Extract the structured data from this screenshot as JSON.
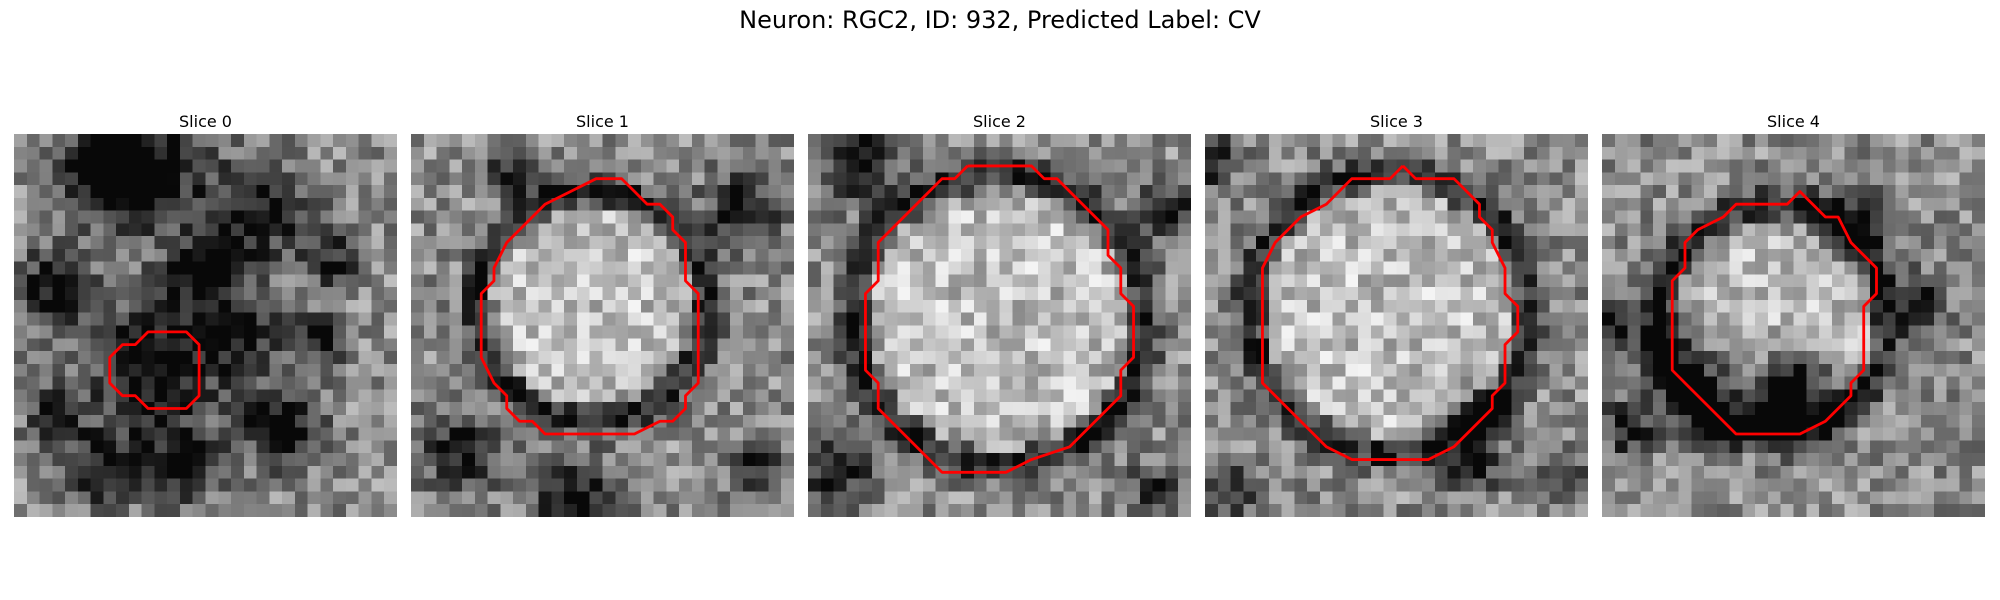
{
  "title": "Neuron: RGC2, ID: 932, Predicted Label: CV",
  "contour_color": "#ff0000",
  "slices": [
    {
      "label": "Slice 0",
      "contour": [
        [
          11.5,
          15.5
        ],
        [
          13.5,
          15.5
        ],
        [
          14.5,
          16.5
        ],
        [
          14.5,
          20.5
        ],
        [
          13.5,
          21.5
        ],
        [
          10.5,
          21.5
        ],
        [
          9.5,
          20.5
        ],
        [
          8.5,
          20.5
        ],
        [
          7.5,
          19.5
        ],
        [
          7.5,
          17.5
        ],
        [
          8.5,
          16.5
        ],
        [
          9.5,
          16.5
        ],
        [
          10.5,
          15.5
        ],
        [
          11.5,
          15.5
        ]
      ],
      "dark_blobs": [
        [
          10,
          3,
          4.5,
          0.6
        ],
        [
          19,
          6,
          4,
          0.5
        ],
        [
          7,
          3,
          3,
          0.5
        ],
        [
          11,
          18,
          5,
          0.6
        ],
        [
          15,
          11,
          3,
          0.55
        ],
        [
          3,
          12,
          3,
          0.5
        ],
        [
          21,
          23,
          3,
          0.6
        ],
        [
          7,
          26,
          3,
          0.5
        ],
        [
          24,
          16,
          2,
          0.5
        ],
        [
          3,
          22,
          2,
          0.45
        ],
        [
          13,
          26,
          3,
          0.5
        ],
        [
          25,
          10,
          2,
          0.45
        ],
        [
          18,
          16,
          3,
          0.45
        ]
      ],
      "ring": null
    },
    {
      "label": "Slice 1",
      "contour": [
        [
          15.5,
          3.5
        ],
        [
          16.5,
          3.5
        ],
        [
          18.5,
          5.5
        ],
        [
          19.5,
          5.5
        ],
        [
          20.5,
          6.5
        ],
        [
          20.5,
          7.5
        ],
        [
          21.5,
          8.5
        ],
        [
          21.5,
          11.5
        ],
        [
          22.5,
          12.5
        ],
        [
          22.5,
          19.5
        ],
        [
          21.5,
          20.5
        ],
        [
          21.5,
          21.5
        ],
        [
          20.5,
          22.5
        ],
        [
          19.5,
          22.5
        ],
        [
          17.5,
          23.5
        ],
        [
          10.5,
          23.5
        ],
        [
          9.5,
          22.5
        ],
        [
          8.5,
          22.5
        ],
        [
          7.5,
          21.5
        ],
        [
          7.5,
          20.5
        ],
        [
          6.5,
          19.5
        ],
        [
          5.5,
          17.5
        ],
        [
          5.5,
          12.5
        ],
        [
          6.5,
          11.5
        ],
        [
          6.5,
          10.5
        ],
        [
          7.5,
          8.5
        ],
        [
          8.5,
          7.5
        ],
        [
          9.5,
          6.5
        ],
        [
          10.5,
          5.5
        ],
        [
          12.5,
          4.5
        ],
        [
          14.5,
          3.5
        ],
        [
          15.5,
          3.5
        ]
      ],
      "dark_blobs": [
        [
          26,
          6,
          3,
          0.5
        ],
        [
          4,
          25,
          3,
          0.5
        ],
        [
          13,
          29,
          3,
          0.6
        ],
        [
          27,
          26,
          2,
          0.45
        ],
        [
          8,
          3,
          2,
          0.4
        ]
      ],
      "ring": {
        "cx": 14.2,
        "cy": 13.5,
        "r": 9.0
      }
    },
    {
      "label": "Slice 2",
      "contour": [
        [
          12.5,
          2.5
        ],
        [
          17.5,
          2.5
        ],
        [
          18.5,
          3.5
        ],
        [
          19.5,
          3.5
        ],
        [
          20.5,
          4.5
        ],
        [
          21.5,
          5.5
        ],
        [
          22.5,
          6.5
        ],
        [
          23.5,
          7.5
        ],
        [
          23.5,
          9.5
        ],
        [
          24.5,
          10.5
        ],
        [
          24.5,
          12.5
        ],
        [
          25.5,
          13.5
        ],
        [
          25.5,
          17.5
        ],
        [
          24.5,
          18.5
        ],
        [
          24.5,
          20.5
        ],
        [
          23.5,
          21.5
        ],
        [
          22.5,
          22.5
        ],
        [
          21.5,
          23.5
        ],
        [
          20.5,
          24.5
        ],
        [
          17.5,
          25.5
        ],
        [
          15.5,
          26.5
        ],
        [
          10.5,
          26.5
        ],
        [
          9.5,
          25.5
        ],
        [
          8.5,
          24.5
        ],
        [
          6.5,
          22.5
        ],
        [
          5.5,
          21.5
        ],
        [
          5.5,
          19.5
        ],
        [
          4.5,
          18.5
        ],
        [
          4.5,
          12.5
        ],
        [
          5.5,
          11.5
        ],
        [
          5.5,
          8.5
        ],
        [
          6.5,
          7.5
        ],
        [
          7.5,
          6.5
        ],
        [
          8.5,
          5.5
        ],
        [
          9.5,
          4.5
        ],
        [
          10.5,
          3.5
        ],
        [
          11.5,
          3.5
        ],
        [
          12.5,
          2.5
        ]
      ],
      "dark_blobs": [
        [
          4,
          2,
          3,
          0.55
        ],
        [
          28,
          6,
          2,
          0.6
        ],
        [
          2,
          26,
          3,
          0.5
        ],
        [
          27,
          28,
          2,
          0.4
        ]
      ],
      "ring": {
        "cx": 15.0,
        "cy": 14.5,
        "r": 11.5
      }
    },
    {
      "label": "Slice 3",
      "contour": [
        [
          15.5,
          2.5
        ],
        [
          16.5,
          3.5
        ],
        [
          19.5,
          3.5
        ],
        [
          21.5,
          5.5
        ],
        [
          21.5,
          6.5
        ],
        [
          22.5,
          7.5
        ],
        [
          22.5,
          8.5
        ],
        [
          23.5,
          10.5
        ],
        [
          23.5,
          12.5
        ],
        [
          24.5,
          13.5
        ],
        [
          24.5,
          15.5
        ],
        [
          23.5,
          16.5
        ],
        [
          23.5,
          19.5
        ],
        [
          22.5,
          20.5
        ],
        [
          22.5,
          21.5
        ],
        [
          19.5,
          24.5
        ],
        [
          17.5,
          25.5
        ],
        [
          11.5,
          25.5
        ],
        [
          9.5,
          24.5
        ],
        [
          7.5,
          22.5
        ],
        [
          6.5,
          21.5
        ],
        [
          4.5,
          19.5
        ],
        [
          4.5,
          10.5
        ],
        [
          5.5,
          8.5
        ],
        [
          6.5,
          7.5
        ],
        [
          7.5,
          6.5
        ],
        [
          9.5,
          5.5
        ],
        [
          11.5,
          3.5
        ],
        [
          14.5,
          3.5
        ],
        [
          15.5,
          2.5
        ]
      ],
      "dark_blobs": [
        [
          0,
          2,
          2,
          0.6
        ],
        [
          22,
          22,
          2,
          0.6
        ],
        [
          21,
          26,
          2,
          0.5
        ],
        [
          28,
          27,
          2,
          0.4
        ],
        [
          2,
          28,
          2,
          0.45
        ]
      ],
      "ring": {
        "cx": 14.5,
        "cy": 14.0,
        "r": 11.0
      }
    },
    {
      "label": "Slice 4",
      "contour": [
        [
          12.5,
          5.5
        ],
        [
          14.5,
          5.5
        ],
        [
          15.5,
          4.5
        ],
        [
          16.5,
          5.5
        ],
        [
          17.5,
          6.5
        ],
        [
          18.5,
          6.5
        ],
        [
          19.5,
          8.5
        ],
        [
          20.5,
          9.5
        ],
        [
          21.5,
          10.5
        ],
        [
          21.5,
          12.5
        ],
        [
          20.5,
          13.5
        ],
        [
          20.5,
          18.5
        ],
        [
          19.5,
          19.5
        ],
        [
          19.5,
          20.5
        ],
        [
          17.5,
          22.5
        ],
        [
          15.5,
          23.5
        ],
        [
          10.5,
          23.5
        ],
        [
          9.5,
          22.5
        ],
        [
          7.5,
          20.5
        ],
        [
          6.5,
          19.5
        ],
        [
          5.5,
          18.5
        ],
        [
          5.5,
          16.5
        ],
        [
          5.5,
          11.5
        ],
        [
          6.5,
          10.5
        ],
        [
          6.5,
          8.5
        ],
        [
          7.5,
          7.5
        ],
        [
          9.5,
          6.5
        ],
        [
          10.5,
          5.5
        ],
        [
          12.5,
          5.5
        ]
      ],
      "dark_blobs": [
        [
          15,
          20,
          3,
          0.75
        ],
        [
          14,
          22,
          2,
          0.6
        ],
        [
          6,
          18,
          3,
          0.5
        ],
        [
          9,
          21,
          3,
          0.55
        ],
        [
          19,
          7,
          3,
          0.4
        ],
        [
          1,
          15,
          2,
          0.45
        ],
        [
          2,
          23,
          2,
          0.5
        ],
        [
          25,
          13,
          2,
          0.4
        ]
      ],
      "ring": {
        "cx": 13.5,
        "cy": 14.5,
        "r": 9.0
      }
    }
  ]
}
